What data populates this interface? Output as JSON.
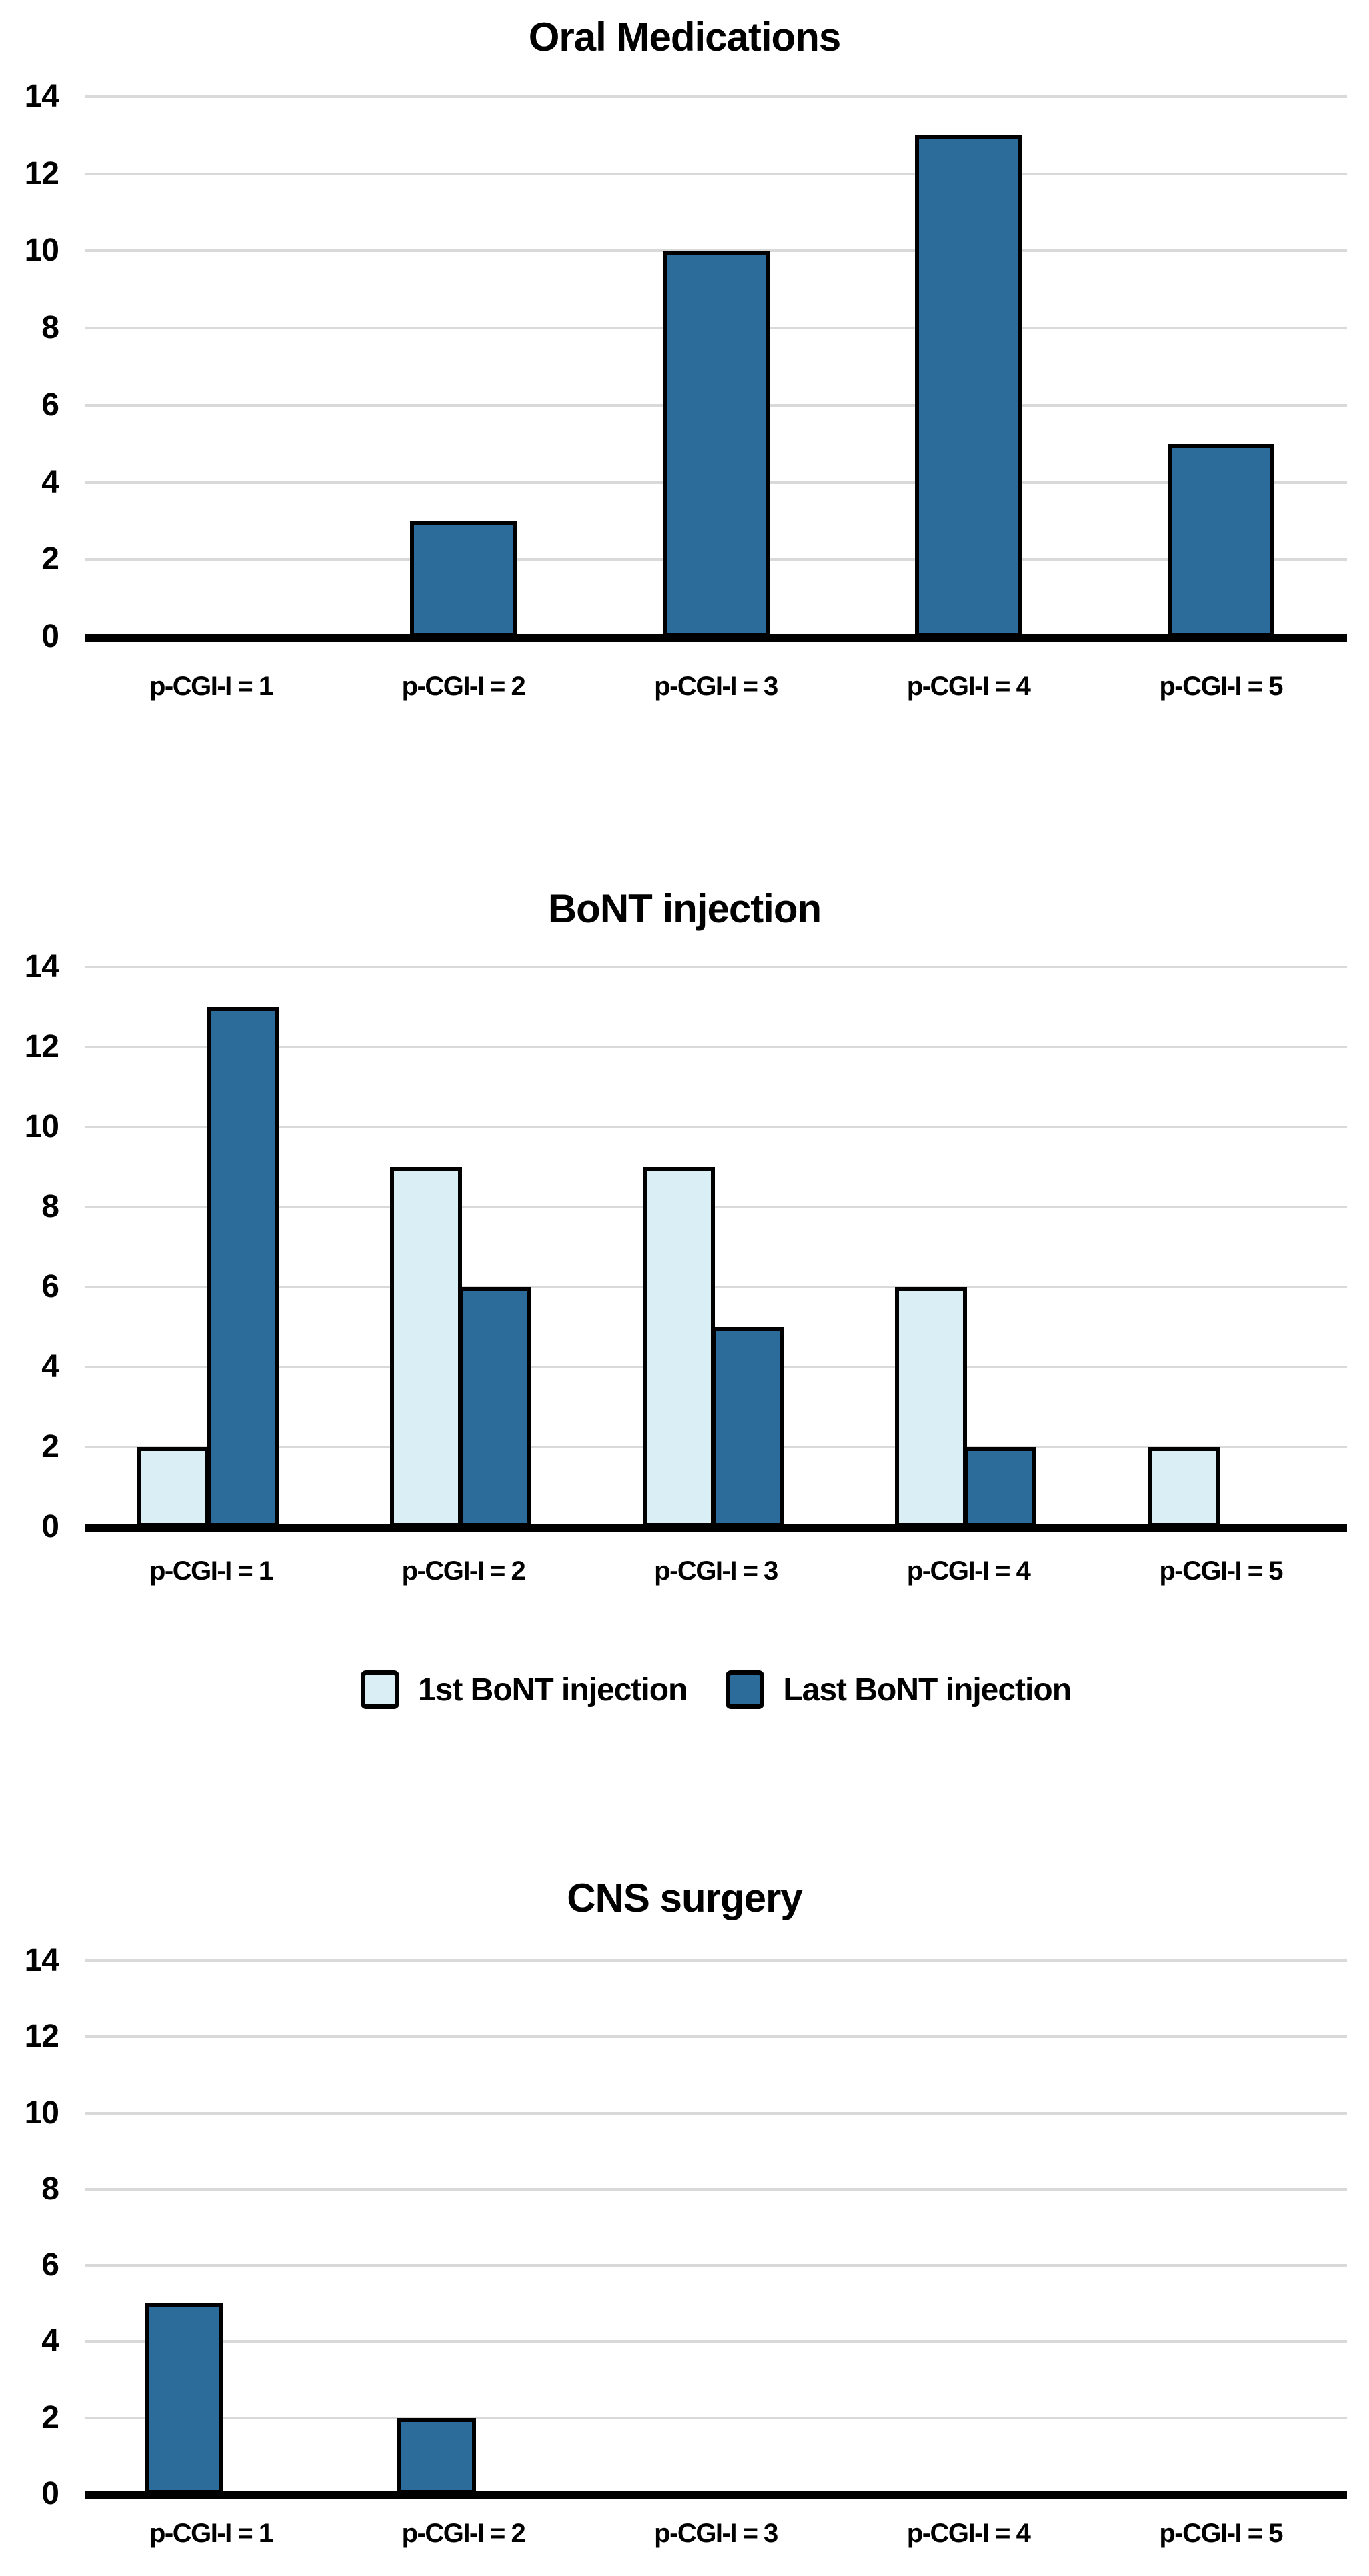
{
  "colors": {
    "dark": "#2B6C9B",
    "light": "#DAEEF6",
    "border": "#000000",
    "gridline": "#D9D9D9",
    "axis": "#000000",
    "background": "#FFFFFF",
    "text": "#000000"
  },
  "chart_data": [
    {
      "type": "bar",
      "title": "Oral Medications",
      "xlabel": "",
      "ylabel": "",
      "ylim": [
        0,
        14
      ],
      "yticks": [
        0,
        2,
        4,
        6,
        8,
        10,
        12,
        14
      ],
      "grid": true,
      "categories": [
        "p-CGI-I = 1",
        "p-CGI-I = 2",
        "p-CGI-I = 3",
        "p-CGI-I = 4",
        "p-CGI-I = 5"
      ],
      "series": [
        {
          "color_key": "dark",
          "values": [
            0,
            3,
            10,
            13,
            5
          ]
        }
      ]
    },
    {
      "type": "bar",
      "title": "BoNT injection",
      "xlabel": "",
      "ylabel": "",
      "ylim": [
        0,
        14
      ],
      "yticks": [
        0,
        2,
        4,
        6,
        8,
        10,
        12,
        14
      ],
      "grid": true,
      "categories": [
        "p-CGI-I = 1",
        "p-CGI-I = 2",
        "p-CGI-I = 3",
        "p-CGI-I = 4",
        "p-CGI-I = 5"
      ],
      "series": [
        {
          "name": "1st BoNT injection",
          "color_key": "light",
          "values": [
            2,
            9,
            9,
            6,
            2
          ]
        },
        {
          "name": "Last BoNT injection",
          "color_key": "dark",
          "values": [
            13,
            6,
            5,
            2,
            0
          ]
        }
      ],
      "legend": {
        "position": "bottom",
        "items": [
          {
            "label": "1st BoNT injection",
            "color_key": "light"
          },
          {
            "label": "Last BoNT injection",
            "color_key": "dark"
          }
        ]
      }
    },
    {
      "type": "bar",
      "title": "CNS surgery",
      "xlabel": "",
      "ylabel": "",
      "ylim": [
        0,
        14
      ],
      "yticks": [
        0,
        2,
        4,
        6,
        8,
        10,
        12,
        14
      ],
      "grid": true,
      "categories": [
        "p-CGI-I = 1",
        "p-CGI-I = 2",
        "p-CGI-I = 3",
        "p-CGI-I = 4",
        "p-CGI-I = 5"
      ],
      "series": [
        {
          "color_key": "dark",
          "values": [
            5,
            2,
            0,
            0,
            0
          ]
        }
      ]
    }
  ]
}
